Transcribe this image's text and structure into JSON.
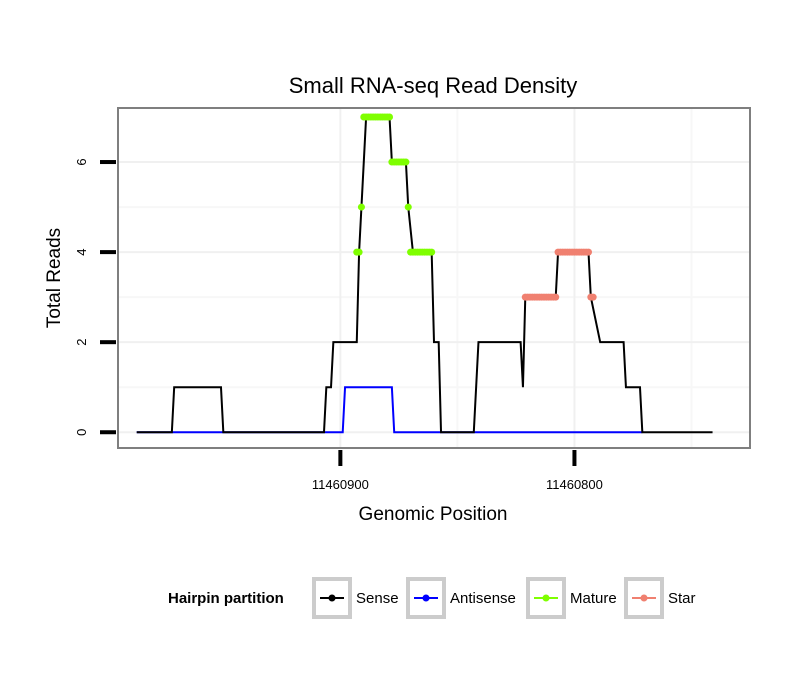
{
  "chart_data": {
    "type": "line",
    "title": "Small RNA-seq Read Density",
    "xlabel": "Genomic Position",
    "ylabel": "Total Reads",
    "xlim": [
      11460995,
      11460725
    ],
    "ylim": [
      -0.35,
      7.2
    ],
    "x_reversed": true,
    "x_ticks": [
      11460900,
      11460800
    ],
    "x_tick_labels": [
      "11460900",
      "11460800"
    ],
    "y_ticks": [
      0,
      2,
      4,
      6
    ],
    "y_tick_labels": [
      "0",
      "2",
      "4",
      "6"
    ],
    "legend": {
      "title": "Hairpin partition",
      "position": "bottom",
      "entries": [
        {
          "name": "Sense",
          "color": "#000000"
        },
        {
          "name": "Antisense",
          "color": "#0000ff"
        },
        {
          "name": "Mature",
          "color": "#7fff00"
        },
        {
          "name": "Star",
          "color": "#f08070"
        }
      ]
    },
    "series": [
      {
        "name": "Sense",
        "color": "#000000",
        "points": [
          [
            11460987,
            0
          ],
          [
            11460972,
            0
          ],
          [
            11460971,
            1
          ],
          [
            11460951,
            1
          ],
          [
            11460950,
            0
          ],
          [
            11460907,
            0
          ],
          [
            11460906,
            1
          ],
          [
            11460904,
            1
          ],
          [
            11460903,
            2
          ],
          [
            11460893,
            2
          ],
          [
            11460892,
            4
          ],
          [
            11460891,
            5
          ],
          [
            11460889,
            7
          ],
          [
            11460879,
            7
          ],
          [
            11460878,
            6
          ],
          [
            11460872,
            6
          ],
          [
            11460871,
            5
          ],
          [
            11460869,
            4
          ],
          [
            11460861,
            4
          ],
          [
            11460860,
            2
          ],
          [
            11460858,
            2
          ],
          [
            11460857,
            0
          ],
          [
            11460843,
            0
          ],
          [
            11460841,
            2
          ],
          [
            11460823,
            2
          ],
          [
            11460822,
            1
          ],
          [
            11460821,
            3
          ],
          [
            11460808,
            3
          ],
          [
            11460807,
            4
          ],
          [
            11460794,
            4
          ],
          [
            11460793,
            3
          ],
          [
            11460789,
            2
          ],
          [
            11460779,
            2
          ],
          [
            11460778,
            1
          ],
          [
            11460772,
            1
          ],
          [
            11460771,
            0
          ],
          [
            11460741,
            0
          ]
        ]
      },
      {
        "name": "Antisense",
        "color": "#0000ff",
        "points": [
          [
            11460987,
            0
          ],
          [
            11460899,
            0
          ],
          [
            11460898,
            1
          ],
          [
            11460878,
            1
          ],
          [
            11460877,
            0
          ],
          [
            11460771,
            0
          ]
        ]
      },
      {
        "name": "Mature",
        "color": "#7fff00",
        "points": [
          [
            11460893,
            4
          ],
          [
            11460892,
            4
          ],
          [
            11460891,
            5
          ],
          [
            11460890,
            7
          ],
          [
            11460889,
            7
          ],
          [
            11460888,
            7
          ],
          [
            11460887,
            7
          ],
          [
            11460886,
            7
          ],
          [
            11460885,
            7
          ],
          [
            11460884,
            7
          ],
          [
            11460883,
            7
          ],
          [
            11460882,
            7
          ],
          [
            11460881,
            7
          ],
          [
            11460880,
            7
          ],
          [
            11460879,
            7
          ],
          [
            11460878,
            6
          ],
          [
            11460877,
            6
          ],
          [
            11460876,
            6
          ],
          [
            11460875,
            6
          ],
          [
            11460874,
            6
          ],
          [
            11460873,
            6
          ],
          [
            11460872,
            6
          ],
          [
            11460871,
            5
          ],
          [
            11460870,
            4
          ],
          [
            11460869,
            4
          ],
          [
            11460868,
            4
          ],
          [
            11460867,
            4
          ],
          [
            11460866,
            4
          ],
          [
            11460865,
            4
          ],
          [
            11460864,
            4
          ],
          [
            11460863,
            4
          ],
          [
            11460862,
            4
          ],
          [
            11460861,
            4
          ]
        ]
      },
      {
        "name": "Star",
        "color": "#f08070",
        "points": [
          [
            11460821,
            3
          ],
          [
            11460820,
            3
          ],
          [
            11460819,
            3
          ],
          [
            11460818,
            3
          ],
          [
            11460817,
            3
          ],
          [
            11460816,
            3
          ],
          [
            11460815,
            3
          ],
          [
            11460814,
            3
          ],
          [
            11460813,
            3
          ],
          [
            11460812,
            3
          ],
          [
            11460811,
            3
          ],
          [
            11460810,
            3
          ],
          [
            11460809,
            3
          ],
          [
            11460808,
            3
          ],
          [
            11460807,
            4
          ],
          [
            11460806,
            4
          ],
          [
            11460805,
            4
          ],
          [
            11460804,
            4
          ],
          [
            11460803,
            4
          ],
          [
            11460802,
            4
          ],
          [
            11460801,
            4
          ],
          [
            11460800,
            4
          ],
          [
            11460799,
            4
          ],
          [
            11460798,
            4
          ],
          [
            11460797,
            4
          ],
          [
            11460796,
            4
          ],
          [
            11460795,
            4
          ],
          [
            11460794,
            4
          ],
          [
            11460793,
            3
          ],
          [
            11460792,
            3
          ]
        ]
      }
    ]
  }
}
